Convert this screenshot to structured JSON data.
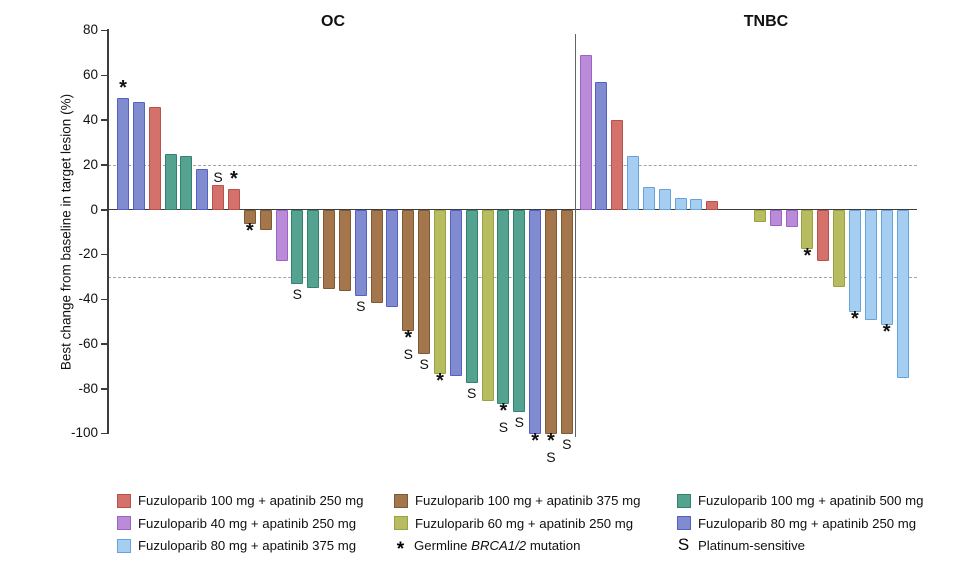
{
  "ylabel": "Best change from baseline in target lesion (%)",
  "chart_data": {
    "type": "bar",
    "kind": "waterfall",
    "ylabel": "Best change from baseline in target lesion (%)",
    "ylim": [
      -100,
      80
    ],
    "yticks": [
      80,
      60,
      40,
      20,
      0,
      -20,
      -40,
      -60,
      -80,
      -100
    ],
    "ref_lines": [
      20,
      -30
    ],
    "grid": "dashed reference lines at +20% and -30% only",
    "annotation_meaning": {
      "*": "Germline BRCA1/2 mutation",
      "S": "Platinum-sensitive"
    },
    "groups": [
      {
        "title": "OC",
        "bars": [
          {
            "slot": 0,
            "v": 50,
            "c": "slate",
            "a": "*"
          },
          {
            "slot": 1,
            "v": 48,
            "c": "slate",
            "a": ""
          },
          {
            "slot": 2,
            "v": 46,
            "c": "red",
            "a": ""
          },
          {
            "slot": 3,
            "v": 25,
            "c": "teal",
            "a": ""
          },
          {
            "slot": 4,
            "v": 24,
            "c": "teal",
            "a": ""
          },
          {
            "slot": 5,
            "v": 18,
            "c": "slate",
            "a": ""
          },
          {
            "slot": 6,
            "v": 11,
            "c": "red",
            "a": "S"
          },
          {
            "slot": 7,
            "v": 9,
            "c": "red",
            "a": "*"
          },
          {
            "slot": 8,
            "v": -6,
            "c": "brown",
            "a": "*"
          },
          {
            "slot": 9,
            "v": -8.5,
            "c": "brown",
            "a": ""
          },
          {
            "slot": 10,
            "v": -22.5,
            "c": "purple",
            "a": ""
          },
          {
            "slot": 11,
            "v": -33,
            "c": "teal",
            "a": "S"
          },
          {
            "slot": 12,
            "v": -34.5,
            "c": "teal",
            "a": ""
          },
          {
            "slot": 13,
            "v": -35,
            "c": "brown",
            "a": ""
          },
          {
            "slot": 14,
            "v": -36,
            "c": "brown",
            "a": ""
          },
          {
            "slot": 15,
            "v": -38,
            "c": "slate",
            "a": "S"
          },
          {
            "slot": 16,
            "v": -41.5,
            "c": "brown",
            "a": ""
          },
          {
            "slot": 17,
            "v": -43,
            "c": "slate",
            "a": ""
          },
          {
            "slot": 18,
            "v": -54,
            "c": "brown",
            "a": "*S"
          },
          {
            "slot": 19,
            "v": -64,
            "c": "brown",
            "a": "S"
          },
          {
            "slot": 20,
            "v": -73,
            "c": "olive",
            "a": "*"
          },
          {
            "slot": 21,
            "v": -74,
            "c": "slate",
            "a": ""
          },
          {
            "slot": 22,
            "v": -77,
            "c": "teal",
            "a": "S"
          },
          {
            "slot": 23,
            "v": -85,
            "c": "olive",
            "a": ""
          },
          {
            "slot": 24,
            "v": -86.5,
            "c": "teal",
            "a": "*S"
          },
          {
            "slot": 25,
            "v": -90,
            "c": "teal",
            "a": "S"
          },
          {
            "slot": 26,
            "v": -100,
            "c": "slate",
            "a": "*"
          },
          {
            "slot": 27,
            "v": -100,
            "c": "brown",
            "a": "*S"
          },
          {
            "slot": 28,
            "v": -100,
            "c": "brown",
            "a": "S"
          }
        ]
      },
      {
        "title": "TNBC",
        "bars": [
          {
            "slot": 0,
            "v": 69,
            "c": "purple",
            "a": ""
          },
          {
            "slot": 1,
            "v": 57,
            "c": "slate",
            "a": ""
          },
          {
            "slot": 2,
            "v": 40,
            "c": "red",
            "a": ""
          },
          {
            "slot": 3,
            "v": 24,
            "c": "lblue",
            "a": ""
          },
          {
            "slot": 4,
            "v": 10,
            "c": "lblue",
            "a": ""
          },
          {
            "slot": 5,
            "v": 9,
            "c": "lblue",
            "a": ""
          },
          {
            "slot": 6,
            "v": 5,
            "c": "lblue",
            "a": ""
          },
          {
            "slot": 7,
            "v": 4.5,
            "c": "lblue",
            "a": ""
          },
          {
            "slot": 8,
            "v": 4,
            "c": "red",
            "a": ""
          },
          {
            "slot": 11,
            "v": -5,
            "c": "olive",
            "a": ""
          },
          {
            "slot": 12,
            "v": -7,
            "c": "purple",
            "a": ""
          },
          {
            "slot": 13,
            "v": -7.5,
            "c": "purple",
            "a": ""
          },
          {
            "slot": 14,
            "v": -17,
            "c": "olive",
            "a": "*"
          },
          {
            "slot": 15,
            "v": -22.5,
            "c": "red",
            "a": ""
          },
          {
            "slot": 16,
            "v": -34,
            "c": "olive",
            "a": ""
          },
          {
            "slot": 17,
            "v": -45.5,
            "c": "lblue",
            "a": "*"
          },
          {
            "slot": 18,
            "v": -49,
            "c": "lblue",
            "a": ""
          },
          {
            "slot": 19,
            "v": -51,
            "c": "lblue",
            "a": "*"
          },
          {
            "slot": 20,
            "v": -75,
            "c": "lblue",
            "a": ""
          }
        ]
      }
    ],
    "colors": {
      "red": {
        "fill": "#d4716a",
        "border": "#b8514b"
      },
      "purple": {
        "fill": "#ba8bd8",
        "border": "#9d62c6"
      },
      "lblue": {
        "fill": "#a6cef0",
        "border": "#66a3da"
      },
      "brown": {
        "fill": "#a3764b",
        "border": "#7e5a34"
      },
      "olive": {
        "fill": "#b8bc60",
        "border": "#9aa244"
      },
      "teal": {
        "fill": "#53a390",
        "border": "#35806e"
      },
      "slate": {
        "fill": "#808bd0",
        "border": "#5560c4"
      }
    }
  },
  "legend": {
    "items": [
      {
        "col": 0,
        "row": 0,
        "marker": "red",
        "label": "Fuzuloparib 100 mg + apatinib 250 mg"
      },
      {
        "col": 1,
        "row": 0,
        "marker": "brown",
        "label": "Fuzuloparib 100 mg + apatinib 375 mg"
      },
      {
        "col": 2,
        "row": 0,
        "marker": "teal",
        "label": "Fuzuloparib 100 mg + apatinib 500 mg"
      },
      {
        "col": 0,
        "row": 1,
        "marker": "purple",
        "label": "Fuzuloparib 40 mg + apatinib 250 mg"
      },
      {
        "col": 1,
        "row": 1,
        "marker": "olive",
        "label": "Fuzuloparib 60 mg + apatinib 250 mg"
      },
      {
        "col": 2,
        "row": 1,
        "marker": "slate",
        "label": "Fuzuloparib 80 mg + apatinib 250 mg"
      },
      {
        "col": 0,
        "row": 2,
        "marker": "lblue",
        "label": "Fuzuloparib 80 mg + apatinib 375 mg"
      },
      {
        "col": 1,
        "row": 2,
        "marker": "star",
        "prefix": "Germline ",
        "italic": "BRCA1/2",
        "suffix": " mutation",
        "symbol": "*"
      },
      {
        "col": 2,
        "row": 2,
        "marker": "S",
        "label": "Platinum-sensitive",
        "symbol": "S"
      }
    ]
  }
}
